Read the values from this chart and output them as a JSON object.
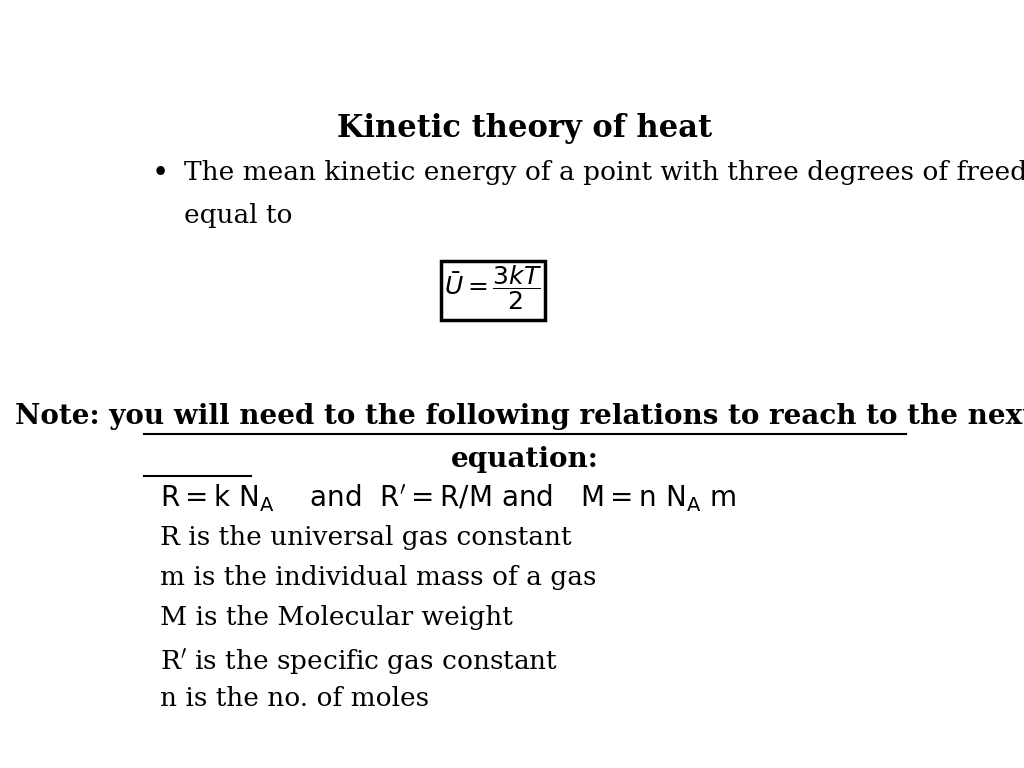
{
  "title": "Kinetic theory of heat",
  "title_fontsize": 22,
  "background_color": "#ffffff",
  "bullet_text_line1": "The mean kinetic energy of a point with three degrees of freedom is",
  "bullet_text_line2": "equal to",
  "note_line1": "Note: you will need to the following relations to reach to the next",
  "note_line2": "equation:",
  "body_lines": [
    "R is the universal gas constant",
    "m is the individual mass of a gas",
    "M is the Molecular weight",
    "R’ is the specific gas constant",
    "n is the no. of moles"
  ],
  "body_fontsize": 19,
  "note_fontsize": 20,
  "equation_fontsize": 18
}
